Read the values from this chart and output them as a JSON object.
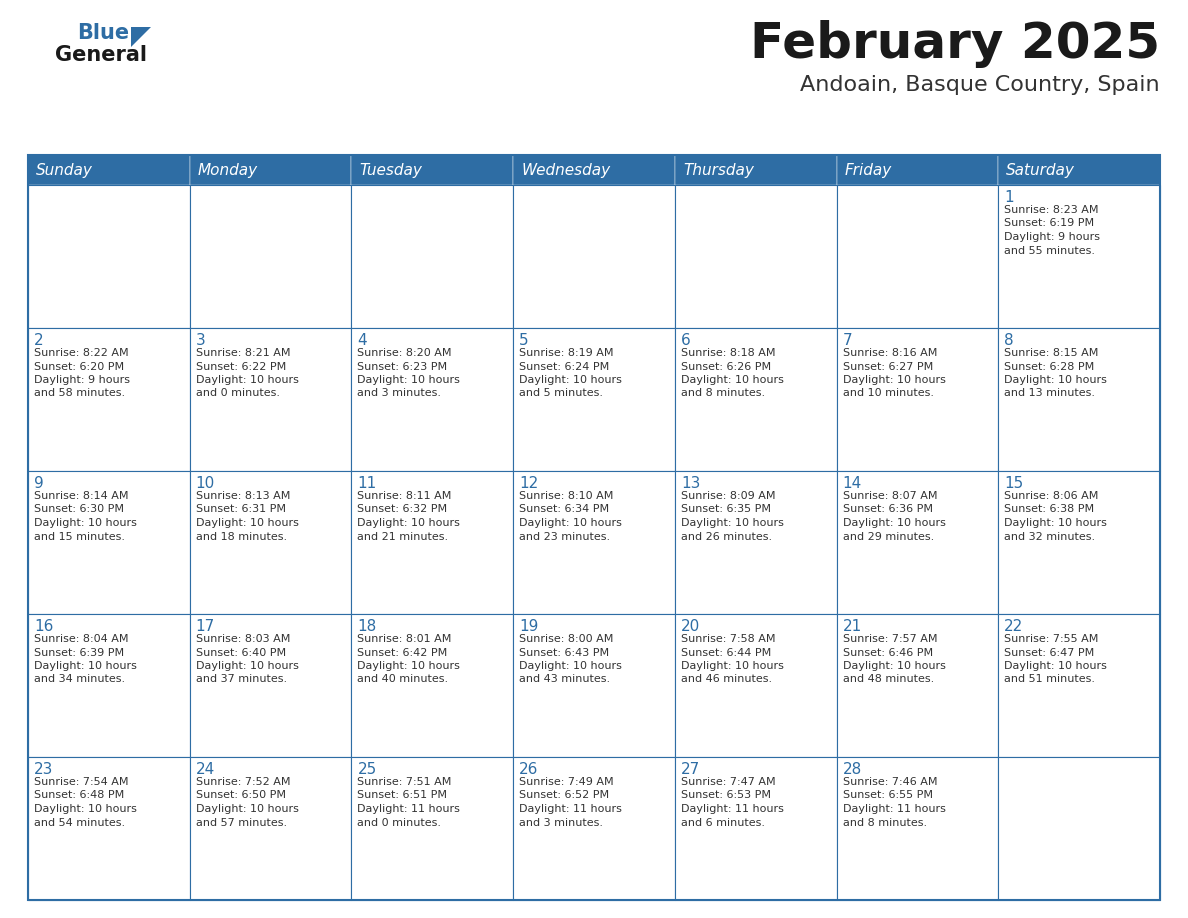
{
  "title": "February 2025",
  "subtitle": "Andoain, Basque Country, Spain",
  "header_bg": "#2E6DA4",
  "header_text_color": "#FFFFFF",
  "cell_bg": "#FFFFFF",
  "day_number_color": "#2E6DA4",
  "info_text_color": "#333333",
  "border_color": "#2E6DA4",
  "days_of_week": [
    "Sunday",
    "Monday",
    "Tuesday",
    "Wednesday",
    "Thursday",
    "Friday",
    "Saturday"
  ],
  "weeks": [
    [
      null,
      null,
      null,
      null,
      null,
      null,
      1
    ],
    [
      2,
      3,
      4,
      5,
      6,
      7,
      8
    ],
    [
      9,
      10,
      11,
      12,
      13,
      14,
      15
    ],
    [
      16,
      17,
      18,
      19,
      20,
      21,
      22
    ],
    [
      23,
      24,
      25,
      26,
      27,
      28,
      null
    ]
  ],
  "day_data": {
    "1": {
      "sunrise": "8:23 AM",
      "sunset": "6:19 PM",
      "daylight_h": "9 hours",
      "daylight_m": "and 55 minutes."
    },
    "2": {
      "sunrise": "8:22 AM",
      "sunset": "6:20 PM",
      "daylight_h": "9 hours",
      "daylight_m": "and 58 minutes."
    },
    "3": {
      "sunrise": "8:21 AM",
      "sunset": "6:22 PM",
      "daylight_h": "10 hours",
      "daylight_m": "and 0 minutes."
    },
    "4": {
      "sunrise": "8:20 AM",
      "sunset": "6:23 PM",
      "daylight_h": "10 hours",
      "daylight_m": "and 3 minutes."
    },
    "5": {
      "sunrise": "8:19 AM",
      "sunset": "6:24 PM",
      "daylight_h": "10 hours",
      "daylight_m": "and 5 minutes."
    },
    "6": {
      "sunrise": "8:18 AM",
      "sunset": "6:26 PM",
      "daylight_h": "10 hours",
      "daylight_m": "and 8 minutes."
    },
    "7": {
      "sunrise": "8:16 AM",
      "sunset": "6:27 PM",
      "daylight_h": "10 hours",
      "daylight_m": "and 10 minutes."
    },
    "8": {
      "sunrise": "8:15 AM",
      "sunset": "6:28 PM",
      "daylight_h": "10 hours",
      "daylight_m": "and 13 minutes."
    },
    "9": {
      "sunrise": "8:14 AM",
      "sunset": "6:30 PM",
      "daylight_h": "10 hours",
      "daylight_m": "and 15 minutes."
    },
    "10": {
      "sunrise": "8:13 AM",
      "sunset": "6:31 PM",
      "daylight_h": "10 hours",
      "daylight_m": "and 18 minutes."
    },
    "11": {
      "sunrise": "8:11 AM",
      "sunset": "6:32 PM",
      "daylight_h": "10 hours",
      "daylight_m": "and 21 minutes."
    },
    "12": {
      "sunrise": "8:10 AM",
      "sunset": "6:34 PM",
      "daylight_h": "10 hours",
      "daylight_m": "and 23 minutes."
    },
    "13": {
      "sunrise": "8:09 AM",
      "sunset": "6:35 PM",
      "daylight_h": "10 hours",
      "daylight_m": "and 26 minutes."
    },
    "14": {
      "sunrise": "8:07 AM",
      "sunset": "6:36 PM",
      "daylight_h": "10 hours",
      "daylight_m": "and 29 minutes."
    },
    "15": {
      "sunrise": "8:06 AM",
      "sunset": "6:38 PM",
      "daylight_h": "10 hours",
      "daylight_m": "and 32 minutes."
    },
    "16": {
      "sunrise": "8:04 AM",
      "sunset": "6:39 PM",
      "daylight_h": "10 hours",
      "daylight_m": "and 34 minutes."
    },
    "17": {
      "sunrise": "8:03 AM",
      "sunset": "6:40 PM",
      "daylight_h": "10 hours",
      "daylight_m": "and 37 minutes."
    },
    "18": {
      "sunrise": "8:01 AM",
      "sunset": "6:42 PM",
      "daylight_h": "10 hours",
      "daylight_m": "and 40 minutes."
    },
    "19": {
      "sunrise": "8:00 AM",
      "sunset": "6:43 PM",
      "daylight_h": "10 hours",
      "daylight_m": "and 43 minutes."
    },
    "20": {
      "sunrise": "7:58 AM",
      "sunset": "6:44 PM",
      "daylight_h": "10 hours",
      "daylight_m": "and 46 minutes."
    },
    "21": {
      "sunrise": "7:57 AM",
      "sunset": "6:46 PM",
      "daylight_h": "10 hours",
      "daylight_m": "and 48 minutes."
    },
    "22": {
      "sunrise": "7:55 AM",
      "sunset": "6:47 PM",
      "daylight_h": "10 hours",
      "daylight_m": "and 51 minutes."
    },
    "23": {
      "sunrise": "7:54 AM",
      "sunset": "6:48 PM",
      "daylight_h": "10 hours",
      "daylight_m": "and 54 minutes."
    },
    "24": {
      "sunrise": "7:52 AM",
      "sunset": "6:50 PM",
      "daylight_h": "10 hours",
      "daylight_m": "and 57 minutes."
    },
    "25": {
      "sunrise": "7:51 AM",
      "sunset": "6:51 PM",
      "daylight_h": "11 hours",
      "daylight_m": "and 0 minutes."
    },
    "26": {
      "sunrise": "7:49 AM",
      "sunset": "6:52 PM",
      "daylight_h": "11 hours",
      "daylight_m": "and 3 minutes."
    },
    "27": {
      "sunrise": "7:47 AM",
      "sunset": "6:53 PM",
      "daylight_h": "11 hours",
      "daylight_m": "and 6 minutes."
    },
    "28": {
      "sunrise": "7:46 AM",
      "sunset": "6:55 PM",
      "daylight_h": "11 hours",
      "daylight_m": "and 8 minutes."
    }
  },
  "logo_text1": "General",
  "logo_text2": "Blue",
  "logo_color1": "#1a1a1a",
  "logo_color2": "#2E6DA4",
  "logo_triangle_color": "#2E6DA4"
}
